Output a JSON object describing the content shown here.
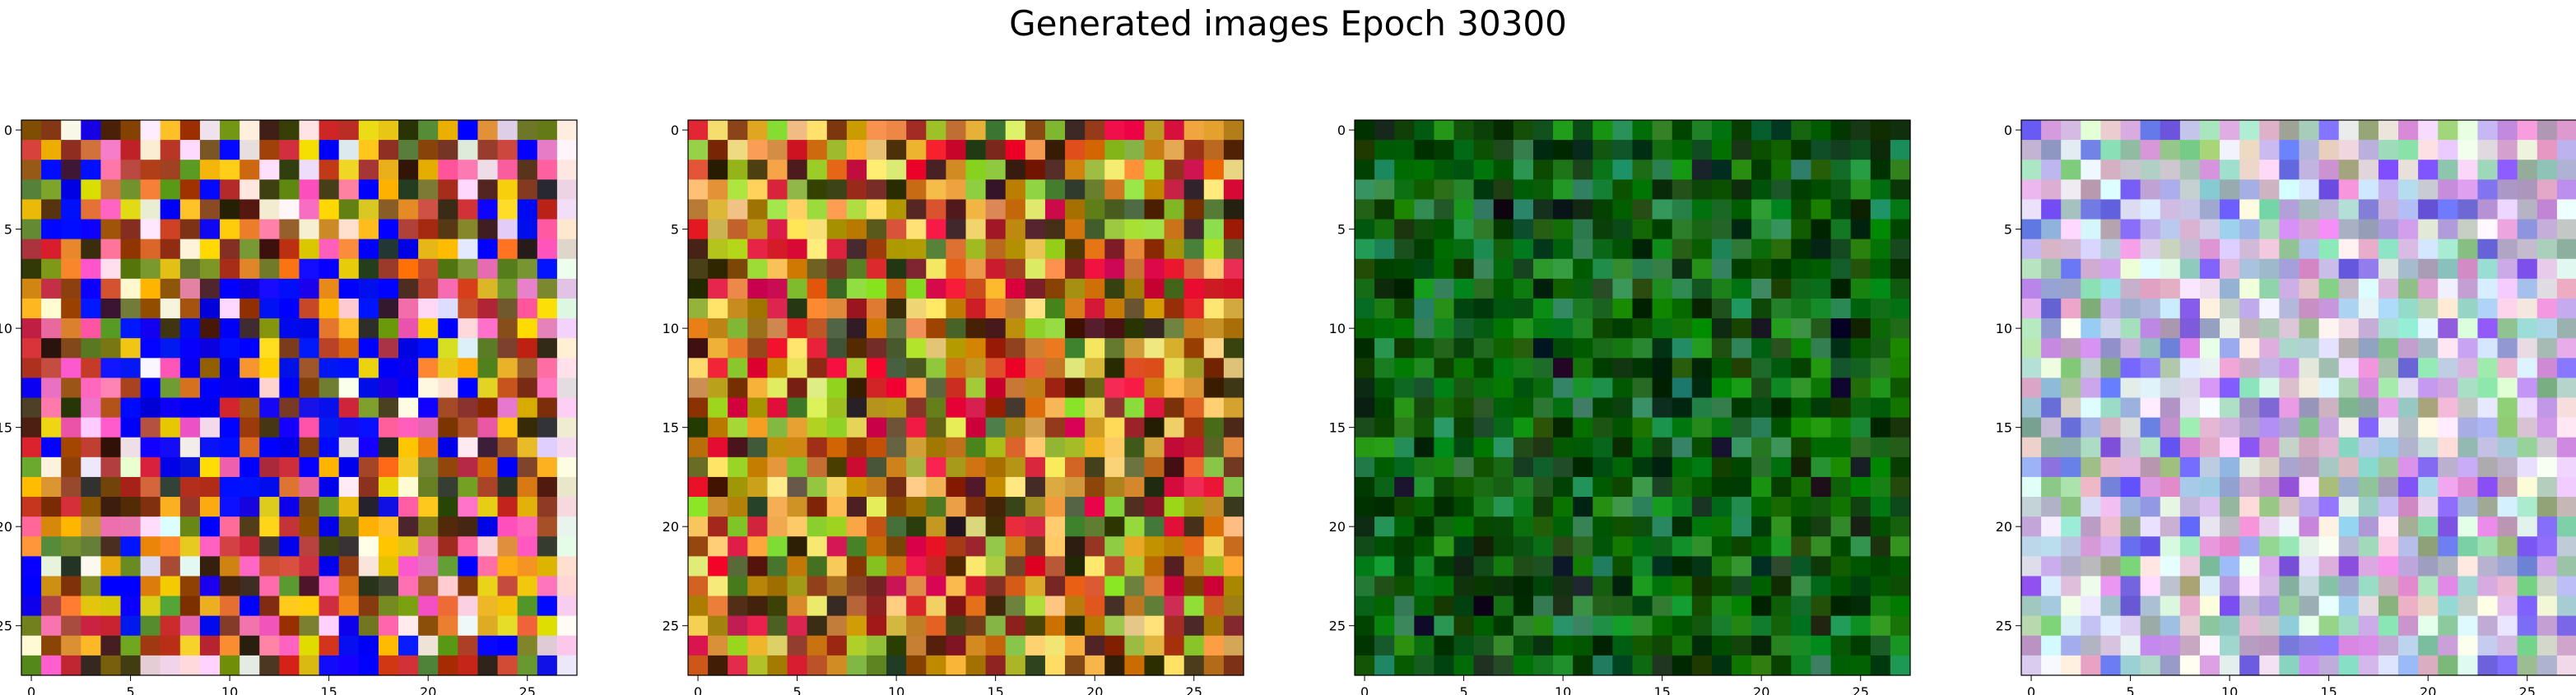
{
  "title": "Generated images Epoch 30300",
  "chart_data": [
    {
      "type": "heatmap",
      "title": "",
      "xlabel": "",
      "ylabel": "",
      "x_ticks": [
        "0",
        "5",
        "10",
        "15",
        "20",
        "25"
      ],
      "y_ticks": [
        "0",
        "5",
        "10",
        "15",
        "20",
        "25"
      ],
      "grid": false,
      "width": 28,
      "height": 28,
      "dominant_colors": [
        "#c0392b",
        "#e67e22",
        "#f1c40f",
        "#0000ff",
        "#6b8e23",
        "#3d2b1f",
        "#ff69b4",
        "#8b4513",
        "#f5e6e8"
      ],
      "description_colors": "mixed warm orange/red/yellow with a blue-purple cluster in the center, pale pink right edge"
    },
    {
      "type": "heatmap",
      "title": "",
      "xlabel": "",
      "ylabel": "",
      "x_ticks": [
        "0",
        "5",
        "10",
        "15",
        "20",
        "25"
      ],
      "y_ticks": [
        "0",
        "5",
        "10",
        "15",
        "20",
        "25"
      ],
      "grid": false,
      "width": 28,
      "height": 28,
      "dominant_colors": [
        "#d2691e",
        "#e6a23c",
        "#b8860b",
        "#9acd32",
        "#8b2e16",
        "#f5d76e",
        "#556b2f",
        "#dc143c",
        "#3b2a14"
      ],
      "description_colors": "warm orange/brown/olive mosaic with scattered purple and blue pixels"
    },
    {
      "type": "heatmap",
      "title": "",
      "xlabel": "",
      "ylabel": "",
      "x_ticks": [
        "0",
        "5",
        "10",
        "15",
        "20",
        "25"
      ],
      "y_ticks": [
        "0",
        "5",
        "10",
        "15",
        "20",
        "25"
      ],
      "grid": false,
      "width": 28,
      "height": 28,
      "dominant_colors": [
        "#006400",
        "#0b7a0b",
        "#228b22",
        "#004d00",
        "#0f3d0f",
        "#2e8b57",
        "#1a5c1a",
        "#003300"
      ],
      "description_colors": "predominantly dark and medium green"
    },
    {
      "type": "heatmap",
      "title": "",
      "xlabel": "",
      "ylabel": "",
      "x_ticks": [
        "0",
        "5",
        "10",
        "15",
        "20",
        "25"
      ],
      "y_ticks": [
        "0",
        "5",
        "10",
        "15",
        "20",
        "25"
      ],
      "grid": false,
      "width": 28,
      "height": 28,
      "dominant_colors": [
        "#d8bfd8",
        "#c9a0dc",
        "#b0c4de",
        "#e6e6fa",
        "#dda0dd",
        "#9fd4c4",
        "#f0f0f0",
        "#a9a9c9",
        "#8fbc8f",
        "#7b68ee"
      ],
      "description_colors": "pastel lavender, pink, light blue and mint mosaic"
    }
  ]
}
